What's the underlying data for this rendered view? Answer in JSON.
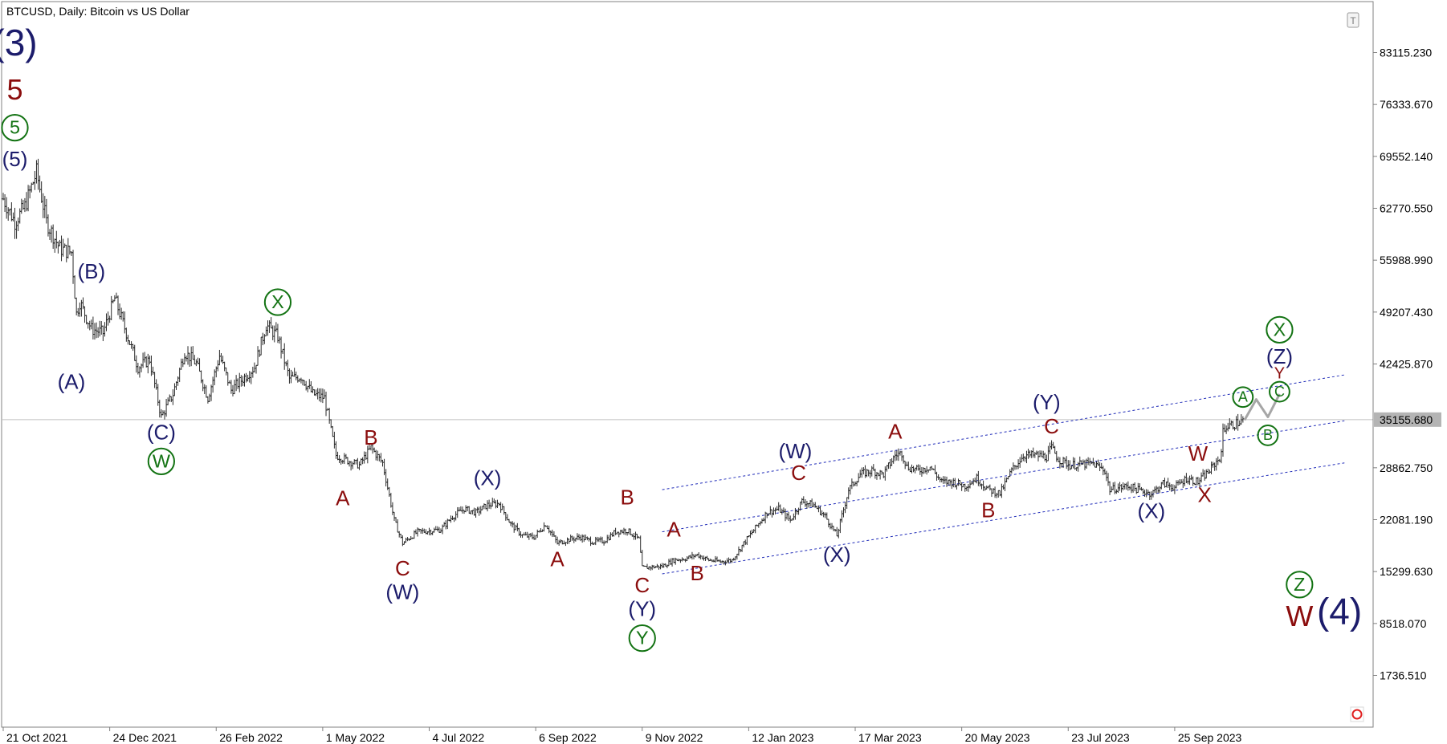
{
  "window": {
    "title": "BTCUSD, Daily:  Bitcoin vs US Dollar"
  },
  "chart_data": {
    "type": "line",
    "symbol": "BTCUSD",
    "timeframe": "Daily",
    "title": "BTCUSD, Daily:  Bitcoin vs US Dollar",
    "grid": false,
    "ylim": [
      1736.51,
      87000
    ],
    "y_ticks": [
      "83115.230",
      "76333.670",
      "69552.140",
      "62770.550",
      "55988.990",
      "49207.430",
      "42425.870",
      "35155.680",
      "28862.750",
      "22081.190",
      "15299.630",
      "8518.070",
      "1736.510"
    ],
    "x_ticks": [
      "21 Oct 2021",
      "24 Dec 2021",
      "26 Feb 2022",
      "1 May 2022",
      "4 Jul 2022",
      "6 Sep 2022",
      "9 Nov 2022",
      "12 Jan 2023",
      "17 Mar 2023",
      "20 May 2023",
      "23 Jul 2023",
      "25 Sep 2023"
    ],
    "current_price": 35155.68,
    "current_price_label": "35155.680",
    "price_series": [
      [
        "2021-10-21",
        64000
      ],
      [
        "2021-10-28",
        61000
      ],
      [
        "2021-11-03",
        63000
      ],
      [
        "2021-11-10",
        67500
      ],
      [
        "2021-11-16",
        61000
      ],
      [
        "2021-11-24",
        57500
      ],
      [
        "2021-12-01",
        57000
      ],
      [
        "2021-12-04",
        49000
      ],
      [
        "2021-12-06",
        50500
      ],
      [
        "2021-12-13",
        47000
      ],
      [
        "2021-12-20",
        46500
      ],
      [
        "2021-12-27",
        51000
      ],
      [
        "2022-01-03",
        46500
      ],
      [
        "2022-01-10",
        42000
      ],
      [
        "2022-01-17",
        43000
      ],
      [
        "2022-01-24",
        35500
      ],
      [
        "2022-01-31",
        38500
      ],
      [
        "2022-02-07",
        44000
      ],
      [
        "2022-02-14",
        42500
      ],
      [
        "2022-02-21",
        38000
      ],
      [
        "2022-02-28",
        43500
      ],
      [
        "2022-03-07",
        39000
      ],
      [
        "2022-03-14",
        40500
      ],
      [
        "2022-03-21",
        42000
      ],
      [
        "2022-03-28",
        47500
      ],
      [
        "2022-04-04",
        46000
      ],
      [
        "2022-04-11",
        40500
      ],
      [
        "2022-04-18",
        40800
      ],
      [
        "2022-04-25",
        38500
      ],
      [
        "2022-05-02",
        38000
      ],
      [
        "2022-05-09",
        30500
      ],
      [
        "2022-05-16",
        29800
      ],
      [
        "2022-05-23",
        29200
      ],
      [
        "2022-05-30",
        31500
      ],
      [
        "2022-06-06",
        29500
      ],
      [
        "2022-06-13",
        22000
      ],
      [
        "2022-06-18",
        19000
      ],
      [
        "2022-06-27",
        20500
      ],
      [
        "2022-07-04",
        20600
      ],
      [
        "2022-07-11",
        20800
      ],
      [
        "2022-07-18",
        22500
      ],
      [
        "2022-07-25",
        23500
      ],
      [
        "2022-08-01",
        23000
      ],
      [
        "2022-08-08",
        24000
      ],
      [
        "2022-08-15",
        24200
      ],
      [
        "2022-08-22",
        21500
      ],
      [
        "2022-08-29",
        20000
      ],
      [
        "2022-09-05",
        19800
      ],
      [
        "2022-09-12",
        21500
      ],
      [
        "2022-09-19",
        19000
      ],
      [
        "2022-09-26",
        19500
      ],
      [
        "2022-10-03",
        19800
      ],
      [
        "2022-10-10",
        19200
      ],
      [
        "2022-10-17",
        19300
      ],
      [
        "2022-10-24",
        20500
      ],
      [
        "2022-10-31",
        20700
      ],
      [
        "2022-11-07",
        19500
      ],
      [
        "2022-11-09",
        15800
      ],
      [
        "2022-11-21",
        16000
      ],
      [
        "2022-11-28",
        16800
      ],
      [
        "2022-12-05",
        17000
      ],
      [
        "2022-12-12",
        17500
      ],
      [
        "2022-12-19",
        16800
      ],
      [
        "2022-12-26",
        16600
      ],
      [
        "2023-01-02",
        16800
      ],
      [
        "2023-01-09",
        19000
      ],
      [
        "2023-01-16",
        21000
      ],
      [
        "2023-01-23",
        23000
      ],
      [
        "2023-01-30",
        23500
      ],
      [
        "2023-02-06",
        22000
      ],
      [
        "2023-02-13",
        24500
      ],
      [
        "2023-02-20",
        24000
      ],
      [
        "2023-02-27",
        22500
      ],
      [
        "2023-03-06",
        20000
      ],
      [
        "2023-03-13",
        26000
      ],
      [
        "2023-03-20",
        28000
      ],
      [
        "2023-03-27",
        28500
      ],
      [
        "2023-04-03",
        28000
      ],
      [
        "2023-04-10",
        30500
      ],
      [
        "2023-04-14",
        30800
      ],
      [
        "2023-04-17",
        29000
      ],
      [
        "2023-04-24",
        28500
      ],
      [
        "2023-05-01",
        29000
      ],
      [
        "2023-05-08",
        27000
      ],
      [
        "2023-05-15",
        27000
      ],
      [
        "2023-05-22",
        26500
      ],
      [
        "2023-05-29",
        27500
      ],
      [
        "2023-06-05",
        26000
      ],
      [
        "2023-06-12",
        25500
      ],
      [
        "2023-06-19",
        28500
      ],
      [
        "2023-06-26",
        30500
      ],
      [
        "2023-07-03",
        30500
      ],
      [
        "2023-07-10",
        30300
      ],
      [
        "2023-07-13",
        31500
      ],
      [
        "2023-07-17",
        30000
      ],
      [
        "2023-07-24",
        29200
      ],
      [
        "2023-07-31",
        29300
      ],
      [
        "2023-08-07",
        29400
      ],
      [
        "2023-08-14",
        28500
      ],
      [
        "2023-08-17",
        26000
      ],
      [
        "2023-08-28",
        26500
      ],
      [
        "2023-09-04",
        25900
      ],
      [
        "2023-09-11",
        25500
      ],
      [
        "2023-09-18",
        26800
      ],
      [
        "2023-09-25",
        26300
      ],
      [
        "2023-10-02",
        27500
      ],
      [
        "2023-10-09",
        27000
      ],
      [
        "2023-10-16",
        28500
      ],
      [
        "2023-10-23",
        30500
      ],
      [
        "2023-10-24",
        34000
      ],
      [
        "2023-10-30",
        34500
      ],
      [
        "2023-11-06",
        35100
      ]
    ],
    "projection": [
      [
        "2023-11-06",
        35100
      ],
      [
        "2023-11-13",
        37800
      ],
      [
        "2023-11-20",
        35500
      ],
      [
        "2023-11-27",
        38500
      ]
    ],
    "channel_lines": [
      {
        "start": [
          "2022-11-21",
          26000
        ],
        "end": [
          "2024-01-05",
          41000
        ]
      },
      {
        "start": [
          "2022-11-21",
          20500
        ],
        "end": [
          "2024-01-05",
          35000
        ]
      },
      {
        "start": [
          "2022-11-21",
          15000
        ],
        "end": [
          "2024-01-05",
          29500
        ]
      }
    ],
    "annotations": [
      {
        "text": "(3)",
        "date": "2021-10-28",
        "price": 84000,
        "color": "navy",
        "size": "xl"
      },
      {
        "text": "5",
        "date": "2021-10-28",
        "price": 78000,
        "color": "maroon",
        "size": "lg"
      },
      {
        "text": "5",
        "date": "2021-10-28",
        "price": 73300,
        "color": "green",
        "size": "md",
        "circle": true
      },
      {
        "text": "(5)",
        "date": "2021-10-28",
        "price": 69000,
        "color": "navy",
        "size": "md"
      },
      {
        "text": "(B)",
        "date": "2021-12-13",
        "price": 54300,
        "color": "navy",
        "size": "md"
      },
      {
        "text": "(A)",
        "date": "2021-12-01",
        "price": 39900,
        "color": "navy",
        "size": "md"
      },
      {
        "text": "(C)",
        "date": "2022-01-24",
        "price": 33300,
        "color": "navy",
        "size": "md"
      },
      {
        "text": "W",
        "date": "2022-01-24",
        "price": 29700,
        "color": "green",
        "size": "md",
        "circle": true
      },
      {
        "text": "X",
        "date": "2022-04-04",
        "price": 50500,
        "color": "green",
        "size": "md",
        "circle": true
      },
      {
        "text": "B",
        "date": "2022-05-30",
        "price": 32600,
        "color": "maroon",
        "size": "md"
      },
      {
        "text": "A",
        "date": "2022-05-13",
        "price": 24700,
        "color": "maroon",
        "size": "md"
      },
      {
        "text": "C",
        "date": "2022-06-18",
        "price": 15500,
        "color": "maroon",
        "size": "md"
      },
      {
        "text": "(W)",
        "date": "2022-06-18",
        "price": 12400,
        "color": "navy",
        "size": "md"
      },
      {
        "text": "(X)",
        "date": "2022-08-08",
        "price": 27300,
        "color": "navy",
        "size": "md"
      },
      {
        "text": "A",
        "date": "2022-09-19",
        "price": 16700,
        "color": "maroon",
        "size": "md"
      },
      {
        "text": "B",
        "date": "2022-10-31",
        "price": 24800,
        "color": "maroon",
        "size": "md"
      },
      {
        "text": "C",
        "date": "2022-11-09",
        "price": 13300,
        "color": "maroon",
        "size": "md"
      },
      {
        "text": "(Y)",
        "date": "2022-11-09",
        "price": 10200,
        "color": "navy",
        "size": "md"
      },
      {
        "text": "Y",
        "date": "2022-11-09",
        "price": 6600,
        "color": "green",
        "size": "md",
        "circle": true
      },
      {
        "text": "A",
        "date": "2022-11-28",
        "price": 20600,
        "color": "maroon",
        "size": "md"
      },
      {
        "text": "B",
        "date": "2022-12-12",
        "price": 14900,
        "color": "maroon",
        "size": "md"
      },
      {
        "text": "(W)",
        "date": "2023-02-09",
        "price": 30800,
        "color": "navy",
        "size": "md"
      },
      {
        "text": "C",
        "date": "2023-02-11",
        "price": 28000,
        "color": "maroon",
        "size": "md"
      },
      {
        "text": "(X)",
        "date": "2023-03-06",
        "price": 17300,
        "color": "navy",
        "size": "md"
      },
      {
        "text": "A",
        "date": "2023-04-10",
        "price": 33400,
        "color": "maroon",
        "size": "md"
      },
      {
        "text": "(Y)",
        "date": "2023-07-10",
        "price": 37200,
        "color": "navy",
        "size": "md"
      },
      {
        "text": "C",
        "date": "2023-07-13",
        "price": 34100,
        "color": "maroon",
        "size": "md"
      },
      {
        "text": "B",
        "date": "2023-06-05",
        "price": 23100,
        "color": "maroon",
        "size": "md"
      },
      {
        "text": "W",
        "date": "2023-10-09",
        "price": 30500,
        "color": "maroon",
        "size": "md"
      },
      {
        "text": "(X)",
        "date": "2023-09-11",
        "price": 23000,
        "color": "navy",
        "size": "md"
      },
      {
        "text": "X",
        "date": "2023-10-13",
        "price": 25100,
        "color": "maroon",
        "size": "md"
      },
      {
        "text": "A",
        "date": "2023-11-05",
        "price": 38100,
        "color": "green",
        "size": "sm",
        "circle": true
      },
      {
        "text": "B",
        "date": "2023-11-20",
        "price": 33100,
        "color": "green",
        "size": "sm",
        "circle": true
      },
      {
        "text": "C",
        "date": "2023-11-27",
        "price": 38800,
        "color": "green",
        "size": "sm",
        "circle": true
      },
      {
        "text": "Y",
        "date": "2023-11-27",
        "price": 41100,
        "color": "maroon",
        "size": "sm"
      },
      {
        "text": "(Z)",
        "date": "2023-11-27",
        "price": 43200,
        "color": "navy",
        "size": "md"
      },
      {
        "text": "X",
        "date": "2023-11-27",
        "price": 46900,
        "color": "green",
        "size": "md",
        "circle": true
      },
      {
        "text": "Z",
        "date": "2023-12-09",
        "price": 13600,
        "color": "green",
        "size": "md",
        "circle": true
      },
      {
        "text": "W",
        "date": "2023-12-09",
        "price": 9200,
        "color": "maroon",
        "size": "lg"
      },
      {
        "text": "(4)",
        "date": "2024-01-02",
        "price": 9700,
        "color": "navy",
        "size": "xl"
      }
    ]
  },
  "colors": {
    "navy": "#1c1c6b",
    "maroon": "#8b0d0d",
    "green": "#137313",
    "price": "#2b2b2b",
    "channel": "#1f2bb8",
    "projection": "#a6a6a6",
    "current_line": "#c0c0c0",
    "price_label_bg": "#b4b4b4"
  },
  "icons": {
    "autoscroll": "scroll-lock-icon",
    "trade_mode": "trade-mode-icon"
  }
}
